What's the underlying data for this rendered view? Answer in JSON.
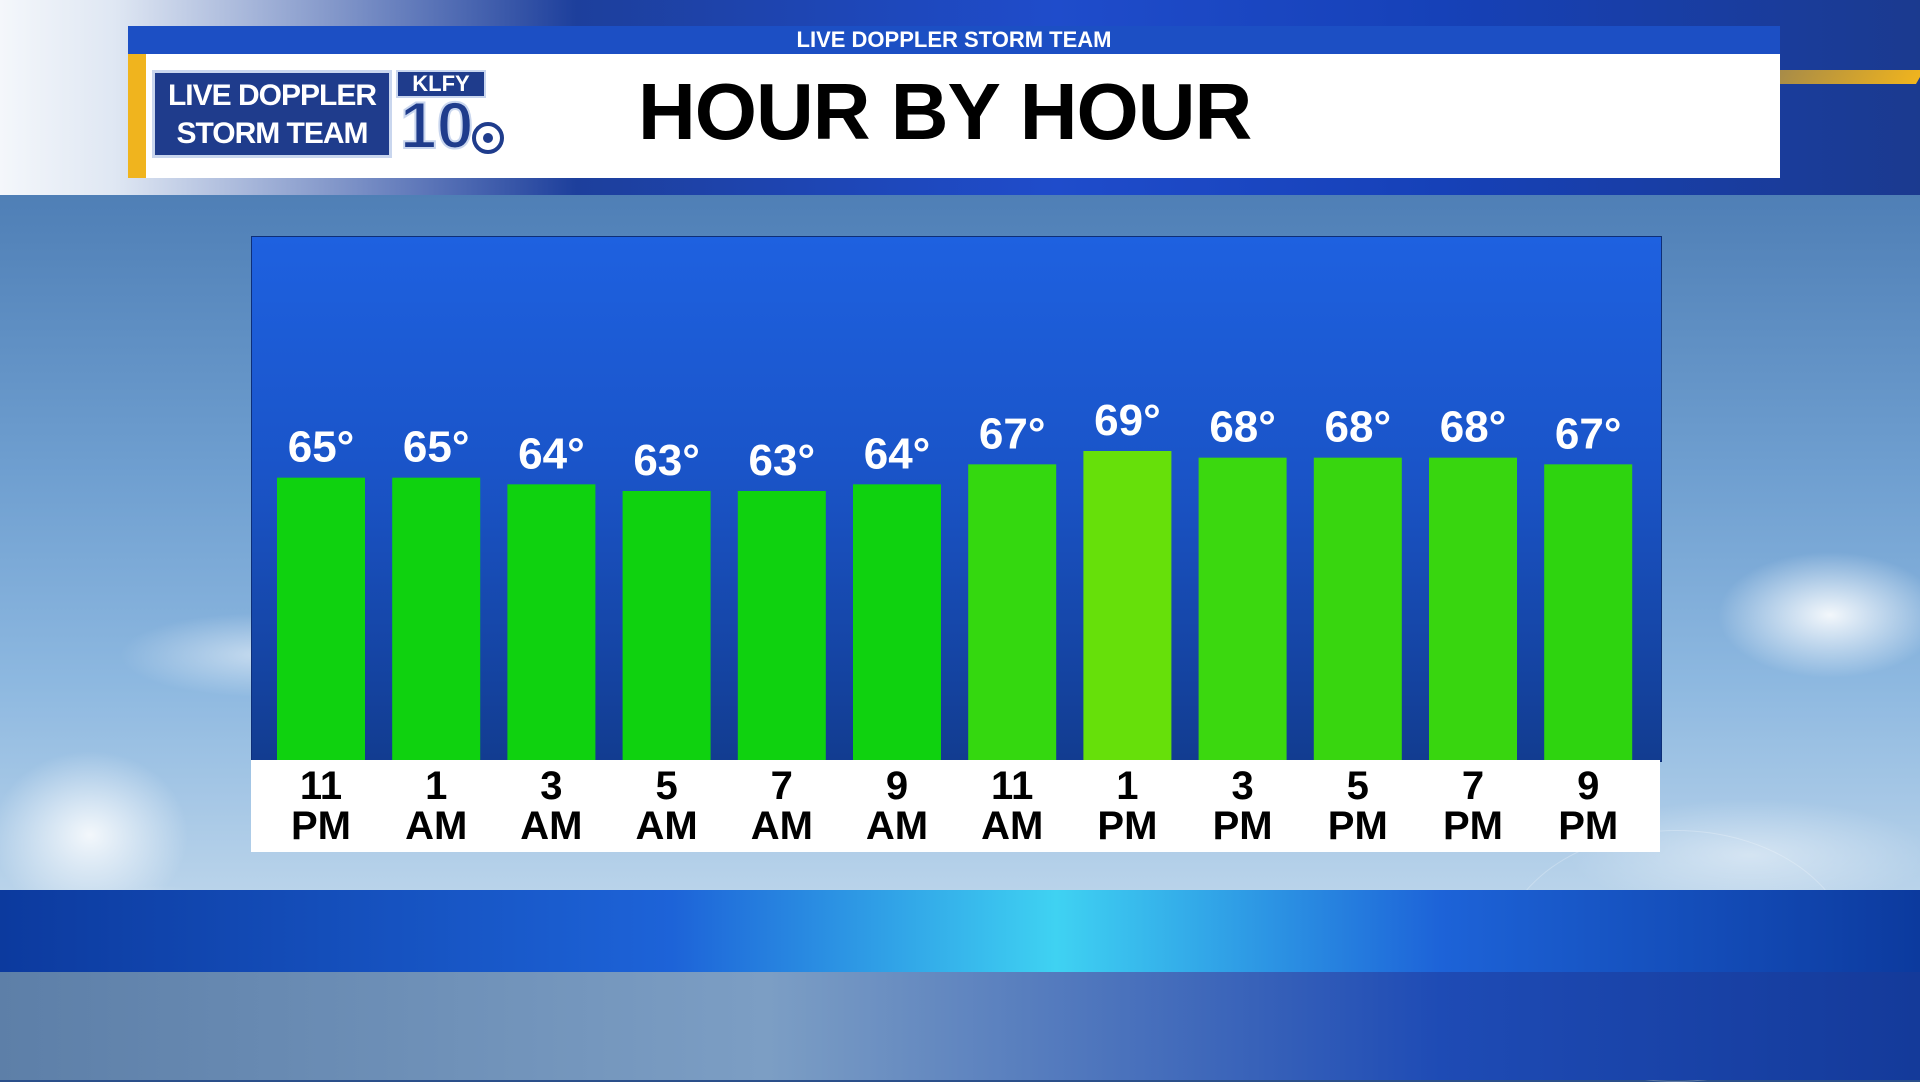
{
  "header": {
    "top_label": "LIVE DOPPLER STORM TEAM",
    "title": "HOUR BY HOUR",
    "logo": {
      "line1": "LIVE DOPPLER",
      "line2": "STORM TEAM",
      "station": "KLFY",
      "channel": "10"
    }
  },
  "chart_data": {
    "type": "bar",
    "categories": [
      "11 PM",
      "1 AM",
      "3 AM",
      "5 AM",
      "7 AM",
      "9 AM",
      "11 AM",
      "1 PM",
      "3 PM",
      "5 PM",
      "7 PM",
      "9 PM"
    ],
    "category_lines": [
      [
        "11",
        "PM"
      ],
      [
        "1",
        "AM"
      ],
      [
        "3",
        "AM"
      ],
      [
        "5",
        "AM"
      ],
      [
        "7",
        "AM"
      ],
      [
        "9",
        "AM"
      ],
      [
        "11",
        "AM"
      ],
      [
        "1",
        "PM"
      ],
      [
        "3",
        "PM"
      ],
      [
        "5",
        "PM"
      ],
      [
        "7",
        "PM"
      ],
      [
        "9",
        "PM"
      ]
    ],
    "values": [
      65,
      65,
      64,
      63,
      63,
      64,
      67,
      69,
      68,
      68,
      68,
      67
    ],
    "value_labels": [
      "65°",
      "65°",
      "64°",
      "63°",
      "63°",
      "64°",
      "67°",
      "69°",
      "68°",
      "68°",
      "68°",
      "67°"
    ],
    "unit": "°F",
    "bar_colors": [
      "#0fd20f",
      "#0fd20f",
      "#0fd20f",
      "#0fd20f",
      "#0fd20f",
      "#0fd20f",
      "#34d80f",
      "#66e00a",
      "#3bd80f",
      "#38d60f",
      "#38d60f",
      "#2ed40f"
    ],
    "panel_color": "#1e61e0",
    "grid": false,
    "legend": "none"
  }
}
